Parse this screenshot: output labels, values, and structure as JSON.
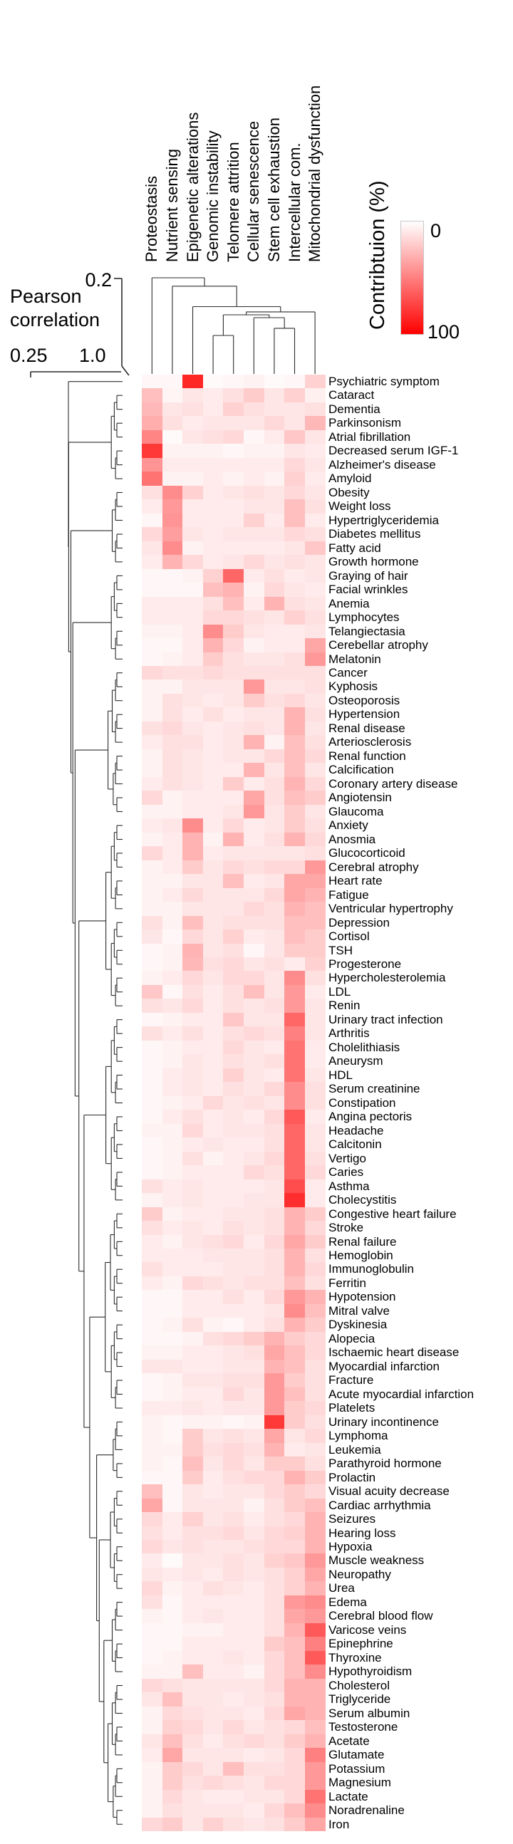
{
  "pearson_axis": {
    "title": "Pearson\ncorrelation",
    "top_tick": "0.2",
    "left_tick": "0.25",
    "right_tick": "1.0"
  },
  "legend": {
    "title": "Contribtuion (%)",
    "min_label": "0",
    "max_label": "100",
    "min_color": "#ffffff",
    "max_color": "#ff0000"
  },
  "chart_data": {
    "type": "heatmap",
    "title": "",
    "value_unit": "contribution percent (0-100), white=0 red=100",
    "legend_position": "right",
    "row_labels_side": "right",
    "columns": [
      "Proteostasis",
      "Nutrient sensing",
      "Epigenetic alterations",
      "Genomic instability",
      "Telomere attrition",
      "Cellular senescence",
      "Stem cell exhaustion",
      "Intercellular com.",
      "Mitochondrial dysfunction"
    ],
    "rows": [
      "Psychiatric symptom",
      "Cataract",
      "Dementia",
      "Parkinsonism",
      "Atrial fibrillation",
      "Decreased serum IGF-1",
      "Alzheimer's disease",
      "Amyloid",
      "Obesity",
      "Weight loss",
      "Hypertriglyceridemia",
      "Diabetes mellitus",
      "Fatty acid",
      "Growth hormone",
      "Graying of hair",
      "Facial wrinkles",
      "Anemia",
      "Lymphocytes",
      "Telangiectasia",
      "Cerebellar atrophy",
      "Melatonin",
      "Cancer",
      "Kyphosis",
      "Osteoporosis",
      "Hypertension",
      "Renal disease",
      "Arteriosclerosis",
      "Renal function",
      "Calcification",
      "Coronary artery disease",
      "Angiotensin",
      "Glaucoma",
      "Anxiety",
      "Anosmia",
      "Glucocorticoid",
      "Cerebral atrophy",
      "Heart rate",
      "Fatigue",
      "Ventricular hypertrophy",
      "Depression",
      "Cortisol",
      "TSH",
      "Progesterone",
      "Hypercholesterolemia",
      "LDL",
      "Renin",
      "Urinary tract infection",
      "Arthritis",
      "Cholelithiasis",
      "Aneurysm",
      "HDL",
      "Serum creatinine",
      "Constipation",
      "Angina pectoris",
      "Headache",
      "Calcitonin",
      "Vertigo",
      "Caries",
      "Asthma",
      "Cholecystitis",
      "Congestive heart failure",
      "Stroke",
      "Renal failure",
      "Hemoglobin",
      "Immunoglobulin",
      "Ferritin",
      "Hypotension",
      "Mitral valve",
      "Dyskinesia",
      "Alopecia",
      "Ischaemic heart disease",
      "Myocardial infarction",
      "Fracture",
      "Acute myocardial infarction",
      "Platelets",
      "Urinary incontinence",
      "Lymphoma",
      "Leukemia",
      "Parathyroid hormone",
      "Prolactin",
      "Visual acuity decrease",
      "Cardiac arrhythmia",
      "Seizures",
      "Hearing loss",
      "Hypoxia",
      "Muscle weakness",
      "Neuropathy",
      "Urea",
      "Edema",
      "Cerebral blood flow",
      "Varicose veins",
      "Epinephrine",
      "Thyroxine",
      "Hypothyroidism",
      "Cholesterol",
      "Triglyceride",
      "Serum albumin",
      "Testosterone",
      "Acetate",
      "Glutamate",
      "Potassium",
      "Magnesium",
      "Lactate",
      "Noradrenaline",
      "Iron"
    ],
    "values": [
      [
        3,
        3,
        85,
        2,
        3,
        5,
        2,
        3,
        18
      ],
      [
        25,
        4,
        10,
        8,
        12,
        20,
        10,
        18,
        6
      ],
      [
        28,
        10,
        12,
        8,
        18,
        12,
        10,
        10,
        12
      ],
      [
        32,
        12,
        8,
        10,
        10,
        10,
        15,
        10,
        28
      ],
      [
        48,
        2,
        10,
        12,
        15,
        3,
        8,
        22,
        10
      ],
      [
        78,
        5,
        5,
        5,
        3,
        5,
        5,
        10,
        8
      ],
      [
        42,
        8,
        8,
        8,
        8,
        8,
        8,
        15,
        10
      ],
      [
        55,
        5,
        5,
        8,
        5,
        8,
        5,
        18,
        8
      ],
      [
        12,
        45,
        18,
        8,
        10,
        12,
        10,
        15,
        10
      ],
      [
        8,
        40,
        8,
        8,
        8,
        10,
        10,
        25,
        12
      ],
      [
        3,
        42,
        8,
        8,
        8,
        18,
        8,
        25,
        8
      ],
      [
        15,
        38,
        10,
        8,
        10,
        10,
        10,
        15,
        12
      ],
      [
        10,
        45,
        5,
        8,
        8,
        8,
        8,
        10,
        22
      ],
      [
        8,
        30,
        15,
        8,
        10,
        15,
        10,
        12,
        10
      ],
      [
        3,
        3,
        5,
        18,
        60,
        8,
        12,
        8,
        10
      ],
      [
        3,
        3,
        3,
        25,
        30,
        5,
        15,
        10,
        8
      ],
      [
        8,
        8,
        8,
        12,
        25,
        8,
        30,
        12,
        10
      ],
      [
        8,
        8,
        8,
        15,
        15,
        12,
        10,
        18,
        12
      ],
      [
        5,
        5,
        8,
        45,
        20,
        10,
        8,
        8,
        10
      ],
      [
        3,
        3,
        8,
        30,
        15,
        5,
        8,
        8,
        35
      ],
      [
        3,
        5,
        8,
        20,
        12,
        10,
        10,
        12,
        40
      ],
      [
        15,
        12,
        12,
        15,
        12,
        12,
        12,
        12,
        12
      ],
      [
        5,
        5,
        10,
        10,
        10,
        40,
        10,
        10,
        12
      ],
      [
        5,
        12,
        10,
        8,
        10,
        20,
        12,
        15,
        10
      ],
      [
        5,
        12,
        8,
        12,
        8,
        10,
        10,
        30,
        12
      ],
      [
        12,
        15,
        10,
        8,
        10,
        12,
        10,
        30,
        10
      ],
      [
        8,
        12,
        12,
        8,
        10,
        30,
        5,
        25,
        12
      ],
      [
        5,
        12,
        10,
        8,
        10,
        10,
        15,
        25,
        15
      ],
      [
        5,
        12,
        10,
        8,
        8,
        30,
        10,
        25,
        10
      ],
      [
        8,
        12,
        10,
        8,
        20,
        8,
        12,
        30,
        15
      ],
      [
        15,
        5,
        8,
        8,
        8,
        35,
        12,
        25,
        20
      ],
      [
        5,
        5,
        8,
        8,
        10,
        40,
        10,
        20,
        10
      ],
      [
        8,
        10,
        45,
        8,
        15,
        8,
        10,
        20,
        12
      ],
      [
        5,
        8,
        30,
        5,
        30,
        8,
        12,
        30,
        15
      ],
      [
        15,
        8,
        30,
        8,
        10,
        10,
        10,
        10,
        12
      ],
      [
        5,
        8,
        20,
        10,
        15,
        12,
        15,
        15,
        40
      ],
      [
        5,
        5,
        10,
        10,
        25,
        8,
        10,
        35,
        35
      ],
      [
        5,
        8,
        15,
        10,
        10,
        10,
        15,
        35,
        30
      ],
      [
        5,
        5,
        10,
        10,
        10,
        15,
        12,
        30,
        25
      ],
      [
        12,
        5,
        25,
        10,
        12,
        12,
        12,
        25,
        25
      ],
      [
        10,
        3,
        15,
        10,
        18,
        8,
        10,
        25,
        20
      ],
      [
        3,
        5,
        30,
        10,
        12,
        3,
        10,
        20,
        20
      ],
      [
        3,
        5,
        28,
        12,
        15,
        10,
        12,
        8,
        18
      ],
      [
        5,
        8,
        15,
        10,
        15,
        15,
        10,
        45,
        12
      ],
      [
        22,
        3,
        12,
        8,
        12,
        25,
        10,
        40,
        8
      ],
      [
        12,
        10,
        15,
        8,
        12,
        10,
        12,
        40,
        10
      ],
      [
        3,
        5,
        8,
        8,
        22,
        10,
        10,
        60,
        10
      ],
      [
        12,
        8,
        12,
        8,
        12,
        15,
        12,
        50,
        10
      ],
      [
        3,
        5,
        8,
        8,
        15,
        10,
        8,
        55,
        8
      ],
      [
        3,
        5,
        10,
        8,
        12,
        10,
        12,
        55,
        8
      ],
      [
        3,
        8,
        10,
        8,
        18,
        10,
        8,
        55,
        10
      ],
      [
        3,
        8,
        10,
        8,
        12,
        10,
        15,
        45,
        12
      ],
      [
        3,
        5,
        8,
        15,
        10,
        12,
        10,
        45,
        12
      ],
      [
        3,
        8,
        12,
        8,
        10,
        8,
        15,
        65,
        8
      ],
      [
        5,
        5,
        15,
        8,
        10,
        10,
        12,
        60,
        10
      ],
      [
        3,
        5,
        8,
        10,
        8,
        8,
        12,
        60,
        10
      ],
      [
        3,
        5,
        12,
        5,
        8,
        10,
        15,
        60,
        12
      ],
      [
        3,
        5,
        8,
        8,
        8,
        15,
        12,
        60,
        15
      ],
      [
        12,
        8,
        10,
        8,
        8,
        8,
        10,
        70,
        8
      ],
      [
        5,
        8,
        10,
        8,
        8,
        10,
        10,
        82,
        8
      ],
      [
        20,
        5,
        8,
        8,
        10,
        10,
        12,
        30,
        20
      ],
      [
        12,
        8,
        10,
        8,
        12,
        10,
        12,
        30,
        15
      ],
      [
        8,
        5,
        10,
        12,
        15,
        8,
        15,
        35,
        20
      ],
      [
        8,
        8,
        8,
        10,
        10,
        10,
        12,
        30,
        12
      ],
      [
        12,
        8,
        8,
        8,
        10,
        10,
        12,
        30,
        15
      ],
      [
        8,
        5,
        15,
        12,
        10,
        12,
        12,
        25,
        12
      ],
      [
        3,
        3,
        8,
        8,
        12,
        8,
        15,
        40,
        30
      ],
      [
        3,
        3,
        8,
        8,
        8,
        8,
        10,
        45,
        25
      ],
      [
        3,
        5,
        12,
        5,
        3,
        8,
        12,
        30,
        20
      ],
      [
        3,
        3,
        5,
        12,
        15,
        20,
        30,
        20,
        15
      ],
      [
        5,
        5,
        8,
        8,
        10,
        12,
        35,
        25,
        15
      ],
      [
        10,
        10,
        8,
        8,
        10,
        10,
        30,
        25,
        12
      ],
      [
        3,
        5,
        10,
        10,
        12,
        12,
        40,
        20,
        12
      ],
      [
        3,
        5,
        8,
        8,
        15,
        10,
        40,
        25,
        12
      ],
      [
        8,
        8,
        10,
        8,
        10,
        10,
        40,
        20,
        15
      ],
      [
        5,
        3,
        5,
        5,
        3,
        5,
        78,
        20,
        12
      ],
      [
        5,
        3,
        20,
        10,
        12,
        10,
        35,
        10,
        15
      ],
      [
        5,
        5,
        20,
        12,
        15,
        12,
        30,
        8,
        10
      ],
      [
        5,
        3,
        25,
        10,
        15,
        10,
        20,
        20,
        12
      ],
      [
        3,
        3,
        20,
        8,
        12,
        15,
        15,
        30,
        20
      ],
      [
        25,
        3,
        10,
        8,
        10,
        10,
        15,
        20,
        15
      ],
      [
        35,
        3,
        10,
        10,
        10,
        5,
        12,
        20,
        25
      ],
      [
        15,
        8,
        18,
        10,
        12,
        8,
        12,
        15,
        30
      ],
      [
        12,
        8,
        12,
        12,
        15,
        10,
        15,
        18,
        30
      ],
      [
        15,
        10,
        12,
        10,
        10,
        12,
        15,
        15,
        30
      ],
      [
        8,
        2,
        10,
        10,
        12,
        10,
        18,
        22,
        40
      ],
      [
        10,
        8,
        10,
        8,
        12,
        10,
        12,
        18,
        35
      ],
      [
        15,
        5,
        8,
        12,
        10,
        8,
        12,
        18,
        30
      ],
      [
        12,
        3,
        8,
        8,
        8,
        8,
        12,
        40,
        45
      ],
      [
        5,
        3,
        8,
        10,
        8,
        8,
        12,
        35,
        40
      ],
      [
        3,
        3,
        5,
        5,
        8,
        8,
        12,
        30,
        65
      ],
      [
        3,
        3,
        8,
        8,
        8,
        8,
        20,
        25,
        50
      ],
      [
        3,
        5,
        8,
        8,
        10,
        8,
        15,
        25,
        65
      ],
      [
        5,
        5,
        25,
        8,
        8,
        5,
        15,
        25,
        45
      ],
      [
        15,
        12,
        10,
        10,
        10,
        10,
        15,
        30,
        30
      ],
      [
        10,
        25,
        10,
        10,
        8,
        10,
        12,
        30,
        30
      ],
      [
        5,
        15,
        12,
        10,
        10,
        8,
        15,
        35,
        30
      ],
      [
        5,
        18,
        15,
        10,
        15,
        10,
        12,
        15,
        25
      ],
      [
        10,
        25,
        12,
        8,
        12,
        15,
        12,
        20,
        30
      ],
      [
        8,
        35,
        10,
        10,
        10,
        8,
        10,
        15,
        50
      ],
      [
        5,
        20,
        15,
        10,
        25,
        12,
        12,
        15,
        40
      ],
      [
        5,
        20,
        12,
        15,
        12,
        10,
        15,
        15,
        40
      ],
      [
        5,
        15,
        10,
        8,
        8,
        10,
        10,
        15,
        55
      ],
      [
        5,
        12,
        10,
        10,
        10,
        8,
        15,
        25,
        45
      ],
      [
        15,
        20,
        10,
        18,
        12,
        10,
        12,
        20,
        35
      ]
    ],
    "col_dendrogram": [
      0,
      0.2,
      [
        1,
        0.27,
        [
          2,
          0.44,
          [
            [
              [
                3,
                0.68,
                4
              ],
              0.508,
              [
                5,
                0.532,
                [
                  6,
                  0.62,
                  7
                ]
              ]
            ],
            0.484,
            8
          ]
        ]
      ]
    ],
    "row_dendrogram_groups": [
      [
        0,
        0
      ],
      [
        1,
        7
      ],
      [
        8,
        13
      ],
      [
        14,
        20
      ],
      [
        21,
        31
      ],
      [
        32,
        45
      ],
      [
        46,
        59
      ],
      [
        60,
        74
      ],
      [
        75,
        79
      ],
      [
        80,
        87
      ],
      [
        88,
        93
      ],
      [
        94,
        104
      ]
    ],
    "col_axis_range": [
      0.2,
      1.0
    ],
    "row_axis_range": [
      0.25,
      1.0
    ]
  }
}
